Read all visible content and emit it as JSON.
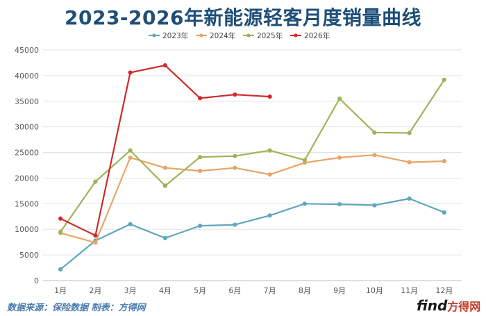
{
  "watermark": {
    "find": "find",
    "name": "方得网"
  },
  "source_note": "数据来源：保险数据 制表：方得网",
  "chart_data": {
    "type": "line",
    "title": "2023-2026年新能源轻客月度销量曲线",
    "xlabel": "",
    "ylabel": "",
    "categories": [
      "1月",
      "2月",
      "3月",
      "4月",
      "5月",
      "6月",
      "7月",
      "8月",
      "9月",
      "10月",
      "11月",
      "12月"
    ],
    "ylim": [
      0,
      45000
    ],
    "yticks": [
      0,
      5000,
      10000,
      15000,
      20000,
      25000,
      30000,
      35000,
      40000,
      45000
    ],
    "grid": "horizontal",
    "legend_position": "top",
    "series": [
      {
        "name": "2023年",
        "color": "#5fa7bd",
        "values": [
          2200,
          7800,
          11000,
          8300,
          10700,
          10900,
          12700,
          15000,
          14900,
          14700,
          16000,
          13300
        ]
      },
      {
        "name": "2024年",
        "color": "#e9a467",
        "values": [
          9300,
          7400,
          24000,
          22000,
          21400,
          22000,
          20700,
          23000,
          24000,
          24500,
          23100,
          23300
        ]
      },
      {
        "name": "2025年",
        "color": "#9cb458",
        "values": [
          9500,
          19300,
          25400,
          18500,
          24100,
          24300,
          25400,
          23500,
          35500,
          28900,
          28800,
          39200
        ]
      },
      {
        "name": "2026年",
        "color": "#d02a2a",
        "values": [
          12100,
          8800,
          40600,
          42000,
          35600,
          36300,
          35900,
          null,
          null,
          null,
          null,
          null
        ]
      }
    ]
  }
}
